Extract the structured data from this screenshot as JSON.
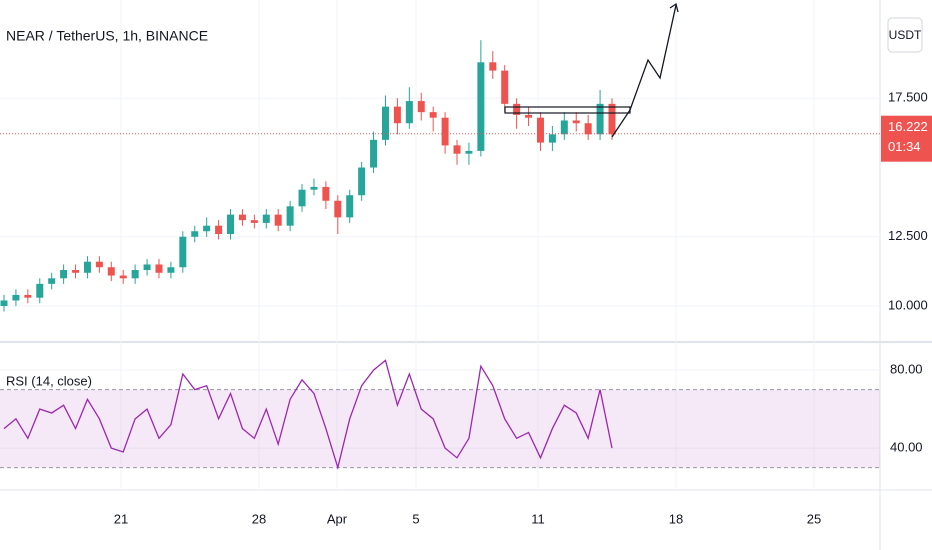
{
  "chart_data": {
    "type": "candlestick",
    "title": "NEAR / TetherUS, 1h, BINANCE",
    "currency": "USDT",
    "open": [
      10.0,
      10.2,
      10.4,
      10.3,
      10.8,
      11.0,
      11.3,
      11.2,
      11.6,
      11.4,
      11.1,
      11.0,
      11.3,
      11.5,
      11.2,
      11.4,
      12.5,
      12.7,
      12.9,
      12.6,
      13.3,
      13.1,
      13.0,
      13.3,
      12.9,
      13.6,
      14.2,
      14.3,
      13.8,
      13.2,
      14.0,
      15.0,
      16.0,
      17.2,
      16.6,
      17.4,
      17.0,
      16.8,
      15.8,
      15.5,
      15.6,
      18.8,
      18.5,
      17.3,
      16.9,
      16.8,
      15.9,
      16.2,
      16.7,
      16.6,
      16.2,
      17.3
    ],
    "high": [
      10.4,
      10.6,
      10.6,
      11.0,
      11.2,
      11.5,
      11.5,
      11.8,
      11.8,
      11.6,
      11.3,
      11.5,
      11.7,
      11.7,
      11.6,
      12.7,
      12.9,
      13.2,
      13.1,
      13.5,
      13.5,
      13.3,
      13.5,
      13.5,
      13.8,
      14.4,
      14.6,
      14.5,
      14.0,
      14.2,
      15.2,
      16.3,
      17.6,
      17.5,
      17.9,
      17.7,
      17.2,
      17.0,
      16.0,
      15.9,
      19.6,
      19.2,
      18.7,
      17.5,
      17.2,
      17.0,
      16.5,
      17.0,
      17.0,
      16.9,
      17.8,
      17.5
    ],
    "low": [
      9.8,
      10.0,
      10.1,
      10.1,
      10.6,
      10.8,
      11.0,
      11.0,
      11.2,
      10.9,
      10.8,
      10.8,
      11.1,
      11.0,
      11.0,
      11.2,
      12.3,
      12.5,
      12.4,
      12.4,
      12.9,
      12.8,
      12.8,
      12.7,
      12.7,
      13.4,
      14.0,
      13.5,
      12.6,
      13.0,
      13.8,
      14.8,
      15.8,
      16.2,
      16.4,
      16.7,
      16.3,
      15.5,
      15.1,
      15.1,
      15.4,
      18.2,
      17.0,
      16.4,
      16.5,
      15.6,
      15.6,
      16.0,
      16.3,
      16.0,
      16.0,
      16.0
    ],
    "close": [
      10.2,
      10.4,
      10.3,
      10.8,
      11.0,
      11.3,
      11.2,
      11.6,
      11.4,
      11.1,
      11.0,
      11.3,
      11.5,
      11.2,
      11.4,
      12.5,
      12.7,
      12.9,
      12.6,
      13.3,
      13.1,
      13.0,
      13.3,
      12.9,
      13.6,
      14.2,
      14.3,
      13.8,
      13.2,
      14.0,
      15.0,
      16.0,
      17.2,
      16.6,
      17.4,
      17.0,
      16.8,
      15.8,
      15.5,
      15.6,
      18.8,
      18.5,
      17.3,
      16.9,
      16.8,
      15.9,
      16.2,
      16.7,
      16.6,
      16.2,
      17.3,
      16.2
    ],
    "up_color": "#26a69a",
    "down_color": "#ef5350",
    "ylim": [
      8.7,
      21.05
    ],
    "yticks": [
      {
        "value": 17.5,
        "label": "17.500"
      },
      {
        "value": 12.5,
        "label": "12.500"
      },
      {
        "value": 10.0,
        "label": "10.000"
      }
    ],
    "last_price": 16.222,
    "countdown": "01:34",
    "time_labels": [
      "21",
      "28",
      "Apr",
      "5",
      "11",
      "18",
      "25"
    ],
    "rsi": {
      "label": "RSI (14, close)",
      "color": "#9c27b0",
      "values": [
        50,
        55,
        45,
        60,
        58,
        62,
        50,
        65,
        55,
        40,
        38,
        55,
        60,
        45,
        52,
        78,
        70,
        72,
        55,
        68,
        50,
        45,
        60,
        42,
        65,
        75,
        68,
        50,
        30,
        55,
        72,
        80,
        85,
        62,
        78,
        60,
        55,
        40,
        35,
        45,
        82,
        72,
        55,
        45,
        48,
        35,
        50,
        62,
        58,
        45,
        70,
        40
      ],
      "bands": [
        70,
        30
      ],
      "ylim": [
        18.5,
        94.4
      ],
      "yticks": [
        {
          "value": 80,
          "label": "80.00"
        },
        {
          "value": 40,
          "label": "40.00"
        }
      ]
    }
  }
}
